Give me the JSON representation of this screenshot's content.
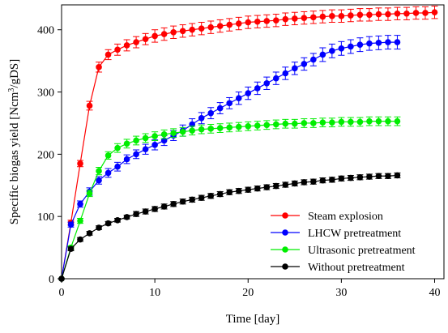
{
  "chart_data": {
    "type": "line",
    "title": "",
    "xlabel": "Time [day]",
    "ylabel_main": "Specific biogas yield [Ncm",
    "ylabel_sup": "3",
    "ylabel_tail": "/gDS]",
    "xlim": [
      0,
      41
    ],
    "ylim": [
      0,
      440
    ],
    "xticks": [
      0,
      10,
      20,
      30,
      40
    ],
    "xtick_labels": [
      "0",
      "10",
      "20",
      "30",
      "40"
    ],
    "yticks": [
      0,
      100,
      200,
      300,
      400
    ],
    "ytick_labels": [
      "0",
      "100",
      "200",
      "300",
      "400"
    ],
    "grid": false,
    "legend_position": "bottom-right",
    "series": [
      {
        "name": "Steam explosion",
        "color": "#ff0000",
        "x": [
          0,
          1,
          2,
          3,
          4,
          5,
          6,
          7,
          8,
          9,
          10,
          11,
          12,
          13,
          14,
          15,
          16,
          17,
          18,
          19,
          20,
          21,
          22,
          23,
          24,
          25,
          26,
          27,
          28,
          29,
          30,
          31,
          32,
          33,
          34,
          35,
          36,
          37,
          38,
          39,
          40
        ],
        "y": [
          0,
          90,
          185,
          278,
          340,
          360,
          368,
          375,
          380,
          385,
          390,
          393,
          396,
          398,
          400,
          402,
          404,
          406,
          408,
          410,
          412,
          413,
          414,
          415,
          417,
          418,
          419,
          420,
          421,
          422,
          422,
          423,
          424,
          424,
          425,
          425,
          426,
          426,
          427,
          427,
          428
        ],
        "err": [
          0,
          4,
          5,
          7,
          8,
          8,
          9,
          9,
          9,
          9,
          10,
          10,
          10,
          10,
          10,
          10,
          10,
          10,
          10,
          10,
          10,
          10,
          10,
          10,
          10,
          10,
          10,
          10,
          10,
          10,
          10,
          10,
          10,
          10,
          10,
          10,
          10,
          10,
          10,
          10,
          10
        ]
      },
      {
        "name": "LHCW pretreatment",
        "color": "#0000ff",
        "x": [
          0,
          1,
          2,
          3,
          4,
          5,
          6,
          7,
          8,
          9,
          10,
          11,
          12,
          13,
          14,
          15,
          16,
          17,
          18,
          19,
          20,
          21,
          22,
          23,
          24,
          25,
          26,
          27,
          28,
          29,
          30,
          31,
          32,
          33,
          34,
          35,
          36
        ],
        "y": [
          0,
          87,
          120,
          140,
          158,
          170,
          180,
          192,
          200,
          208,
          215,
          222,
          230,
          238,
          248,
          258,
          266,
          274,
          282,
          290,
          298,
          306,
          314,
          322,
          330,
          338,
          345,
          352,
          360,
          366,
          370,
          373,
          376,
          378,
          379,
          380,
          380
        ],
        "err": [
          0,
          4,
          5,
          6,
          6,
          7,
          7,
          7,
          7,
          8,
          8,
          8,
          8,
          9,
          9,
          9,
          9,
          9,
          9,
          10,
          10,
          10,
          10,
          10,
          10,
          10,
          10,
          10,
          11,
          11,
          11,
          11,
          11,
          11,
          11,
          11,
          11
        ]
      },
      {
        "name": "Ultrasonic pretreatment",
        "color": "#00ee00",
        "x": [
          0,
          1,
          2,
          3,
          4,
          5,
          6,
          7,
          8,
          9,
          10,
          11,
          12,
          13,
          14,
          15,
          16,
          17,
          18,
          19,
          20,
          21,
          22,
          23,
          24,
          25,
          26,
          27,
          28,
          29,
          30,
          31,
          32,
          33,
          34,
          35,
          36
        ],
        "y": [
          0,
          50,
          93,
          137,
          173,
          198,
          210,
          217,
          222,
          226,
          229,
          232,
          234,
          236,
          238,
          240,
          241,
          242,
          243,
          244,
          245,
          246,
          247,
          248,
          249,
          249,
          250,
          250,
          251,
          251,
          252,
          252,
          252,
          253,
          253,
          253,
          253
        ],
        "err": [
          0,
          3,
          4,
          5,
          6,
          6,
          7,
          7,
          7,
          7,
          7,
          7,
          7,
          7,
          7,
          7,
          7,
          7,
          7,
          7,
          7,
          7,
          7,
          7,
          7,
          7,
          7,
          7,
          7,
          7,
          7,
          7,
          7,
          7,
          7,
          7,
          7
        ]
      },
      {
        "name": "Without pretreatment",
        "color": "#000000",
        "x": [
          0,
          1,
          2,
          3,
          4,
          5,
          6,
          7,
          8,
          9,
          10,
          11,
          12,
          13,
          14,
          15,
          16,
          17,
          18,
          19,
          20,
          21,
          22,
          23,
          24,
          25,
          26,
          27,
          28,
          29,
          30,
          31,
          32,
          33,
          34,
          35,
          36
        ],
        "y": [
          0,
          48,
          63,
          73,
          82,
          89,
          94,
          99,
          104,
          108,
          112,
          116,
          120,
          124,
          127,
          130,
          133,
          136,
          139,
          141,
          143,
          145,
          147,
          149,
          151,
          153,
          155,
          156,
          158,
          159,
          161,
          162,
          163,
          164,
          165,
          165,
          166
        ],
        "err": [
          0,
          3,
          3,
          3,
          3,
          3,
          3,
          3,
          4,
          4,
          4,
          4,
          4,
          4,
          4,
          4,
          4,
          4,
          4,
          4,
          4,
          4,
          4,
          4,
          4,
          4,
          4,
          4,
          4,
          4,
          4,
          4,
          4,
          4,
          4,
          4,
          4
        ]
      }
    ]
  }
}
